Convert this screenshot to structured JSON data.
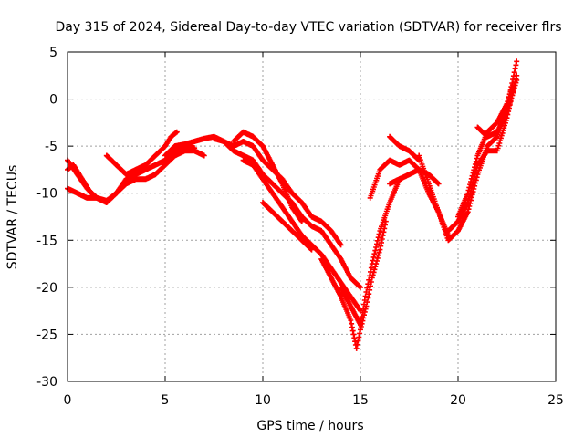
{
  "chart_data": {
    "type": "scatter",
    "title": "Day 315 of 2024, Sidereal Day-to-day VTEC variation (SDTVAR) for receiver flrs",
    "xlabel": "GPS time / hours",
    "ylabel": "SDTVAR / TECUs",
    "xlim": [
      0,
      25
    ],
    "ylim": [
      -30,
      5
    ],
    "x_ticks": [
      0,
      5,
      10,
      15,
      20,
      25
    ],
    "y_ticks": [
      -30,
      -25,
      -20,
      -15,
      -10,
      -5,
      0,
      5
    ],
    "grid": true,
    "marker": "+",
    "color": "#ff0000",
    "series": [
      {
        "x": [
          0,
          0.5,
          1.0,
          1.5,
          2.0,
          2.5,
          3.0,
          3.5,
          4.0,
          4.5,
          5.0,
          5.5,
          6.0,
          6.5,
          7.0
        ],
        "y": [
          -6.5,
          -8.0,
          -9.5,
          -10.5,
          -11.0,
          -10.0,
          -9.0,
          -8.5,
          -8.5,
          -8.0,
          -7.0,
          -6.0,
          -5.5,
          -5.5,
          -6.0
        ]
      },
      {
        "x": [
          0,
          0.5,
          1.0,
          1.5,
          2.0,
          2.5,
          3.0,
          3.5,
          4.0,
          4.5,
          5.0,
          5.5,
          6.0,
          6.5
        ],
        "y": [
          -9.5,
          -10.0,
          -10.5,
          -10.5,
          -10.8,
          -10.0,
          -8.5,
          -8.0,
          -7.5,
          -7.0,
          -6.5,
          -5.5,
          -5.0,
          -5.2
        ]
      },
      {
        "x": [
          0.0,
          0.3,
          0.6,
          0.9,
          1.2
        ],
        "y": [
          -7.5,
          -7.0,
          -8.0,
          -9.0,
          -10.0
        ]
      },
      {
        "x": [
          2.0,
          2.5,
          3.0,
          3.5,
          4.0,
          4.5,
          5.0,
          5.3,
          5.6
        ],
        "y": [
          -6.0,
          -7.0,
          -8.0,
          -7.5,
          -7.0,
          -6.0,
          -5.0,
          -4.0,
          -3.5
        ]
      },
      {
        "x": [
          5.0,
          5.5,
          6.0,
          6.5,
          7.0,
          7.5,
          8.0,
          8.5,
          9.0,
          9.5,
          10.0,
          10.5,
          11.0,
          11.5,
          12.0,
          12.5,
          13.0,
          13.5,
          14.0
        ],
        "y": [
          -6.0,
          -5.0,
          -4.8,
          -4.5,
          -4.2,
          -4.0,
          -4.5,
          -5.0,
          -4.5,
          -5.0,
          -6.5,
          -7.5,
          -8.5,
          -10.0,
          -11.0,
          -12.5,
          -13.0,
          -14.0,
          -15.5
        ]
      },
      {
        "x": [
          7.5,
          8.0,
          8.5,
          9.0,
          9.5,
          10.0,
          10.5,
          11.0,
          11.5,
          12.0,
          12.5,
          13.0,
          13.5,
          14.0,
          14.5,
          15.0
        ],
        "y": [
          -4.2,
          -4.5,
          -5.5,
          -6.0,
          -6.5,
          -8.0,
          -9.0,
          -10.0,
          -11.0,
          -12.5,
          -13.5,
          -14.0,
          -15.5,
          -17.0,
          -19.0,
          -20.0
        ]
      },
      {
        "x": [
          8.5,
          9.0,
          9.5,
          10.0,
          10.5,
          11.0,
          11.5,
          12.0
        ],
        "y": [
          -4.5,
          -3.5,
          -4.0,
          -5.0,
          -7.0,
          -9.0,
          -11.5,
          -13.0
        ]
      },
      {
        "x": [
          9.0,
          9.5,
          10.0,
          10.5,
          11.0,
          11.5,
          12.0,
          12.5,
          13.0,
          13.5,
          14.0,
          14.5,
          15.0
        ],
        "y": [
          -6.5,
          -7.0,
          -8.5,
          -10.0,
          -11.5,
          -13.0,
          -14.5,
          -15.5,
          -16.5,
          -18.0,
          -19.5,
          -21.0,
          -22.5
        ]
      },
      {
        "x": [
          10.0,
          10.5,
          11.0,
          11.5,
          12.0,
          12.5
        ],
        "y": [
          -11.0,
          -12.0,
          -13.0,
          -14.0,
          -15.0,
          -16.0
        ]
      },
      {
        "x": [
          13.0,
          13.5,
          14.0,
          14.5,
          14.8,
          15.0,
          15.3,
          15.6,
          16.0,
          16.3
        ],
        "y": [
          -17.0,
          -19.0,
          -21.0,
          -23.5,
          -26.5,
          -24.5,
          -22.0,
          -19.0,
          -16.0,
          -13.0
        ]
      },
      {
        "x": [
          14.0,
          14.5,
          15.0,
          15.3,
          15.6,
          16.0,
          16.5,
          17.0
        ],
        "y": [
          -20.0,
          -22.0,
          -24.0,
          -20.5,
          -17.5,
          -14.0,
          -11.0,
          -8.5
        ]
      },
      {
        "x": [
          15.5,
          16.0,
          16.5,
          17.0,
          17.5,
          18.0,
          18.5,
          19.0,
          19.5
        ],
        "y": [
          -10.5,
          -7.5,
          -6.5,
          -7.0,
          -6.5,
          -7.5,
          -10.0,
          -12.0,
          -14.5
        ]
      },
      {
        "x": [
          16.5,
          17.0,
          17.5,
          18.0,
          18.5,
          19.0
        ],
        "y": [
          -9.0,
          -8.5,
          -8.0,
          -7.5,
          -8.0,
          -9.0
        ]
      },
      {
        "x": [
          16.5,
          17.0,
          17.5,
          18.0
        ],
        "y": [
          -4.0,
          -5.0,
          -5.5,
          -6.5
        ]
      },
      {
        "x": [
          18.0,
          18.5,
          19.0,
          19.5,
          20.0,
          20.5,
          21.0,
          21.5,
          22.0,
          22.5,
          23.0
        ],
        "y": [
          -6.0,
          -9.0,
          -12.0,
          -15.0,
          -14.0,
          -12.0,
          -8.0,
          -5.0,
          -4.0,
          -1.0,
          4.0
        ]
      },
      {
        "x": [
          19.5,
          20.0,
          20.5,
          21.0,
          21.5,
          22.0,
          22.5,
          23.0
        ],
        "y": [
          -14.0,
          -13.0,
          -11.0,
          -7.0,
          -5.5,
          -5.5,
          -2.0,
          2.5
        ]
      },
      {
        "x": [
          20.0,
          20.5,
          21.0,
          21.5,
          22.0,
          22.5,
          22.8
        ],
        "y": [
          -12.5,
          -10.0,
          -6.0,
          -3.5,
          -2.5,
          -0.5,
          1.5
        ]
      },
      {
        "x": [
          21.0,
          21.5,
          22.0,
          22.5,
          23.0
        ],
        "y": [
          -3.0,
          -4.0,
          -3.5,
          -1.5,
          2.0
        ]
      }
    ]
  }
}
